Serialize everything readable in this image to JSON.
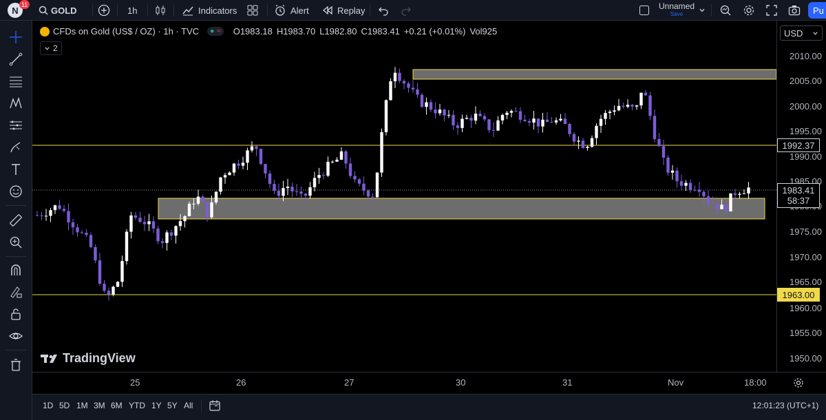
{
  "topbar": {
    "avatar_letter": "N",
    "notification_count": "11",
    "symbol": "GOLD",
    "interval": "1h",
    "indicators_label": "Indicators",
    "alert_label": "Alert",
    "replay_label": "Replay",
    "layout_name": "Unnamed",
    "layout_status": "Save",
    "publish_label": "Pu"
  },
  "legend": {
    "title": "CFDs on Gold (US$ / OZ) · 1h · TVC",
    "o_label": "O",
    "o_value": "1983.18",
    "h_label": "H",
    "h_value": "1983.70",
    "l_label": "L",
    "l_value": "1982.80",
    "c_label": "C",
    "c_value": "1983.41",
    "change": "+0.21 (+0.01%)",
    "vol_label": "Vol",
    "vol_value": "925",
    "collapse_count": "2"
  },
  "price_axis": {
    "currency": "USD",
    "ticks": [
      "2010.00",
      "2005.00",
      "2000.00",
      "1995.00",
      "1990.00",
      "1985.00",
      "1980.00",
      "1975.00",
      "1970.00",
      "1965.00",
      "1960.00",
      "1955.00",
      "1950.00"
    ],
    "level_upper": "1992.37",
    "level_lower": "1963.00",
    "last_price": "1983.41",
    "countdown": "58:37"
  },
  "time_axis": {
    "labels": [
      "25",
      "26",
      "27",
      "30",
      "31",
      "Nov",
      "18:00"
    ]
  },
  "bottombar": {
    "ranges": [
      "1D",
      "5D",
      "1M",
      "3M",
      "6M",
      "YTD",
      "1Y",
      "5Y",
      "All"
    ],
    "clock": "12:01:23 (UTC+1)"
  },
  "watermark": "TradingView",
  "colors": {
    "background": "#000000",
    "panel": "#131722",
    "border": "#2a2e39",
    "bull": "#ffffff",
    "bear": "#7b5cd6",
    "level_line": "#f0d94a",
    "zone_fill": "#8c8c8c",
    "accent": "#2962ff",
    "badge_red": "#f23645"
  },
  "icons": [
    "search-icon",
    "plus-icon",
    "candles-icon",
    "indicators-icon",
    "templates-icon",
    "alert-icon",
    "replay-icon",
    "undo-icon",
    "redo-icon",
    "fullscreen-icon",
    "camera-icon",
    "settings-icon",
    "quick-search-icon",
    "crosshair-icon",
    "trendline-icon",
    "fib-icon",
    "pattern-icon",
    "measure-icon",
    "brush-icon",
    "text-icon",
    "emoji-icon",
    "ruler-icon",
    "zoom-icon",
    "magnet-icon",
    "lock-draw-icon",
    "lock-icon",
    "eye-icon",
    "trash-icon",
    "calendar-icon",
    "gear-icon"
  ]
}
